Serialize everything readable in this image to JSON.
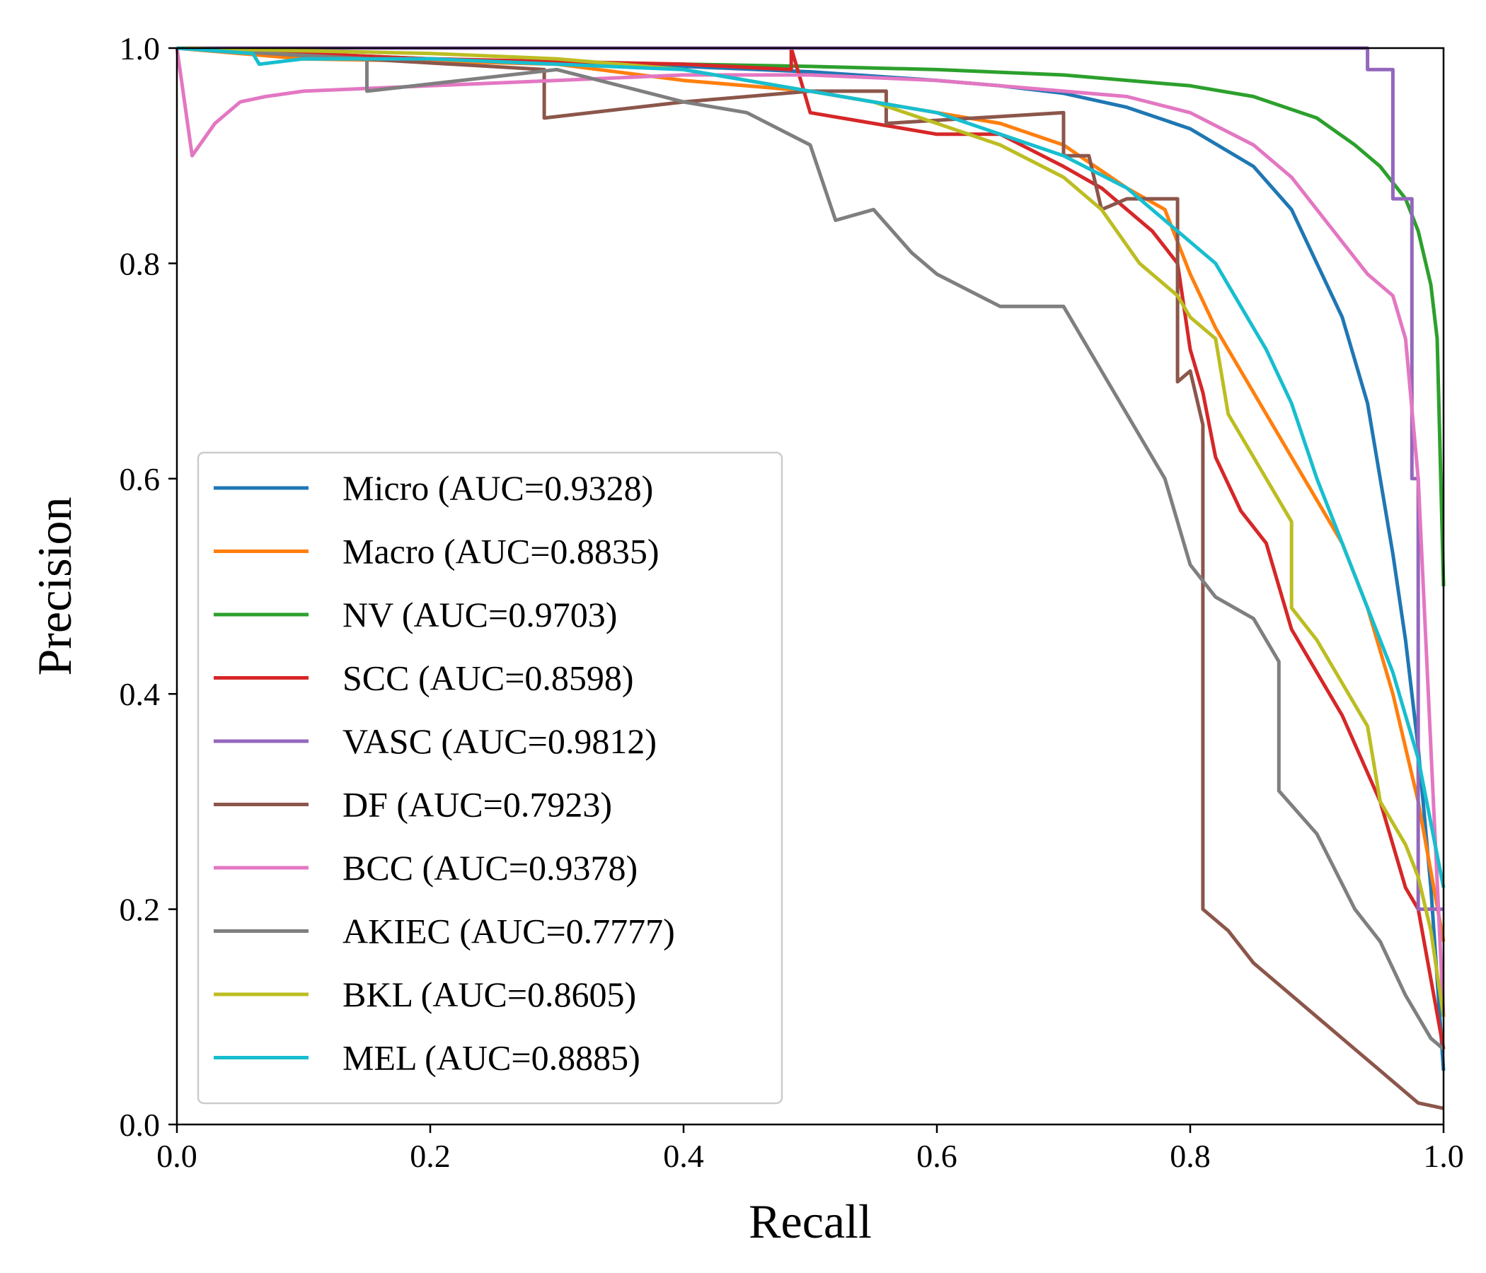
{
  "chart_data": {
    "type": "line",
    "title": "",
    "xlabel": "Recall",
    "ylabel": "Precision",
    "xlim": [
      0,
      1
    ],
    "ylim": [
      0,
      1
    ],
    "xticks": [
      "0.0",
      "0.2",
      "0.4",
      "0.6",
      "0.8",
      "1.0"
    ],
    "yticks": [
      "0.0",
      "0.2",
      "0.4",
      "0.6",
      "0.8",
      "1.0"
    ],
    "grid": false,
    "legend_position": "lower-left",
    "series": [
      {
        "name": "Micro (AUC=0.9328)",
        "color": "#1f77b4",
        "x": [
          0.0,
          0.05,
          0.1,
          0.2,
          0.3,
          0.4,
          0.5,
          0.6,
          0.65,
          0.7,
          0.75,
          0.8,
          0.85,
          0.88,
          0.9,
          0.92,
          0.94,
          0.95,
          0.96,
          0.97,
          0.98,
          0.99,
          1.0
        ],
        "y": [
          1.0,
          0.995,
          0.993,
          0.99,
          0.987,
          0.983,
          0.978,
          0.97,
          0.965,
          0.958,
          0.945,
          0.925,
          0.89,
          0.85,
          0.8,
          0.75,
          0.67,
          0.6,
          0.53,
          0.45,
          0.35,
          0.22,
          0.05
        ]
      },
      {
        "name": "Macro (AUC=0.8835)",
        "color": "#ff7f0e",
        "x": [
          0.0,
          0.05,
          0.1,
          0.2,
          0.3,
          0.4,
          0.5,
          0.55,
          0.6,
          0.65,
          0.7,
          0.75,
          0.78,
          0.8,
          0.82,
          0.85,
          0.88,
          0.9,
          0.92,
          0.94,
          0.96,
          0.98,
          1.0
        ],
        "y": [
          1.0,
          0.995,
          0.99,
          0.988,
          0.985,
          0.97,
          0.96,
          0.95,
          0.94,
          0.93,
          0.91,
          0.87,
          0.85,
          0.79,
          0.74,
          0.68,
          0.62,
          0.58,
          0.54,
          0.48,
          0.4,
          0.3,
          0.17
        ]
      },
      {
        "name": "NV (AUC=0.9703)",
        "color": "#2ca02c",
        "x": [
          0.0,
          0.1,
          0.2,
          0.3,
          0.4,
          0.5,
          0.6,
          0.7,
          0.8,
          0.85,
          0.9,
          0.93,
          0.95,
          0.97,
          0.98,
          0.99,
          0.995,
          1.0
        ],
        "y": [
          1.0,
          0.995,
          0.99,
          0.987,
          0.985,
          0.983,
          0.98,
          0.975,
          0.965,
          0.955,
          0.935,
          0.91,
          0.89,
          0.86,
          0.83,
          0.78,
          0.73,
          0.5
        ]
      },
      {
        "name": "SCC (AUC=0.8598)",
        "color": "#d62728",
        "x": [
          0.0,
          0.2,
          0.4,
          0.485,
          0.485,
          0.5,
          0.55,
          0.6,
          0.65,
          0.7,
          0.73,
          0.75,
          0.77,
          0.79,
          0.8,
          0.81,
          0.82,
          0.84,
          0.86,
          0.88,
          0.9,
          0.92,
          0.95,
          0.97,
          0.98,
          1.0
        ],
        "y": [
          1.0,
          0.99,
          0.985,
          0.98,
          1.0,
          0.94,
          0.93,
          0.92,
          0.92,
          0.89,
          0.87,
          0.85,
          0.83,
          0.8,
          0.72,
          0.68,
          0.62,
          0.57,
          0.54,
          0.46,
          0.42,
          0.38,
          0.3,
          0.22,
          0.2,
          0.07
        ]
      },
      {
        "name": "VASC (AUC=0.9812)",
        "color": "#9467bd",
        "x": [
          0.0,
          0.5,
          0.94,
          0.94,
          0.96,
          0.96,
          0.975,
          0.975,
          0.98,
          0.98,
          1.0
        ],
        "y": [
          1.0,
          1.0,
          1.0,
          0.98,
          0.98,
          0.86,
          0.86,
          0.6,
          0.6,
          0.2,
          0.2
        ]
      },
      {
        "name": "DF (AUC=0.7923)",
        "color": "#8c564b",
        "x": [
          0.0,
          0.29,
          0.29,
          0.4,
          0.5,
          0.56,
          0.56,
          0.7,
          0.7,
          0.72,
          0.73,
          0.75,
          0.79,
          0.79,
          0.8,
          0.81,
          0.81,
          0.83,
          0.85,
          0.87,
          0.9,
          0.93,
          0.95,
          0.98,
          1.0
        ],
        "y": [
          1.0,
          0.98,
          0.935,
          0.95,
          0.96,
          0.96,
          0.93,
          0.94,
          0.9,
          0.9,
          0.85,
          0.86,
          0.86,
          0.69,
          0.7,
          0.65,
          0.2,
          0.18,
          0.15,
          0.13,
          0.1,
          0.07,
          0.05,
          0.02,
          0.015
        ]
      },
      {
        "name": "BCC (AUC=0.9378)",
        "color": "#e377c2",
        "x": [
          0.0,
          0.012,
          0.03,
          0.05,
          0.07,
          0.1,
          0.2,
          0.3,
          0.4,
          0.5,
          0.6,
          0.7,
          0.75,
          0.8,
          0.85,
          0.88,
          0.9,
          0.92,
          0.94,
          0.96,
          0.97,
          0.98,
          0.99,
          1.0
        ],
        "y": [
          1.0,
          0.9,
          0.93,
          0.95,
          0.955,
          0.96,
          0.965,
          0.97,
          0.975,
          0.975,
          0.97,
          0.96,
          0.955,
          0.94,
          0.91,
          0.88,
          0.85,
          0.82,
          0.79,
          0.77,
          0.73,
          0.6,
          0.35,
          0.1
        ]
      },
      {
        "name": "AKIEC (AUC=0.7777)",
        "color": "#7f7f7f",
        "x": [
          0.0,
          0.15,
          0.15,
          0.3,
          0.4,
          0.45,
          0.5,
          0.52,
          0.55,
          0.58,
          0.6,
          0.65,
          0.7,
          0.72,
          0.75,
          0.78,
          0.8,
          0.82,
          0.85,
          0.87,
          0.87,
          0.9,
          0.93,
          0.95,
          0.97,
          0.99,
          1.0
        ],
        "y": [
          1.0,
          0.99,
          0.96,
          0.98,
          0.95,
          0.94,
          0.91,
          0.84,
          0.85,
          0.81,
          0.79,
          0.76,
          0.76,
          0.72,
          0.66,
          0.6,
          0.52,
          0.49,
          0.47,
          0.43,
          0.31,
          0.27,
          0.2,
          0.17,
          0.12,
          0.08,
          0.07
        ]
      },
      {
        "name": "BKL (AUC=0.8605)",
        "color": "#bcbd22",
        "x": [
          0.0,
          0.2,
          0.3,
          0.4,
          0.45,
          0.5,
          0.55,
          0.6,
          0.65,
          0.7,
          0.73,
          0.76,
          0.79,
          0.8,
          0.82,
          0.83,
          0.85,
          0.88,
          0.88,
          0.9,
          0.92,
          0.94,
          0.95,
          0.97,
          0.98,
          0.99,
          1.0
        ],
        "y": [
          1.0,
          0.995,
          0.99,
          0.98,
          0.97,
          0.96,
          0.95,
          0.93,
          0.91,
          0.88,
          0.85,
          0.8,
          0.77,
          0.75,
          0.73,
          0.66,
          0.62,
          0.56,
          0.48,
          0.45,
          0.41,
          0.37,
          0.3,
          0.26,
          0.23,
          0.18,
          0.1
        ]
      },
      {
        "name": "MEL (AUC=0.8885)",
        "color": "#17becf",
        "x": [
          0.0,
          0.06,
          0.065,
          0.1,
          0.2,
          0.3,
          0.4,
          0.5,
          0.55,
          0.6,
          0.65,
          0.7,
          0.75,
          0.8,
          0.82,
          0.84,
          0.86,
          0.88,
          0.9,
          0.92,
          0.94,
          0.96,
          0.98,
          1.0
        ],
        "y": [
          1.0,
          0.995,
          0.985,
          0.99,
          0.99,
          0.985,
          0.98,
          0.96,
          0.95,
          0.94,
          0.92,
          0.9,
          0.87,
          0.82,
          0.8,
          0.76,
          0.72,
          0.67,
          0.6,
          0.54,
          0.48,
          0.42,
          0.34,
          0.22
        ]
      }
    ]
  }
}
